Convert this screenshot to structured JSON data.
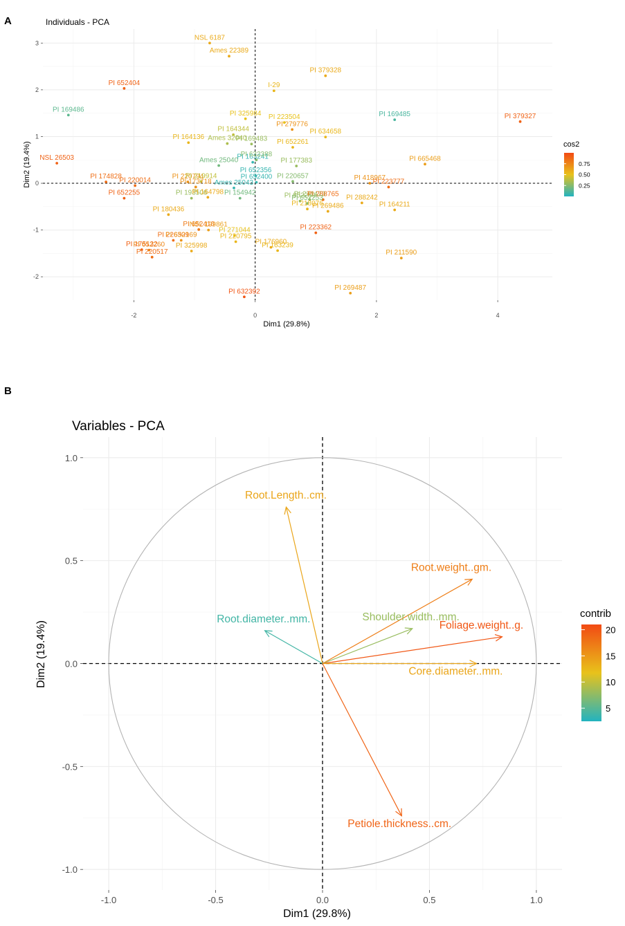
{
  "colors": {
    "low": "#22b3c0",
    "mid": "#e8c21b",
    "high": "#f24a14",
    "panel_bg": "#ffffff",
    "grid": "#ebebeb",
    "axis_text": "#4d4d4d"
  },
  "chart_data": [
    {
      "type": "scatter",
      "panel_label": "A",
      "title": "Individuals - PCA",
      "xlabel": "Dim1 (29.8%)",
      "ylabel": "Dim2 (19.4%)",
      "xlim": [
        -3.5,
        4.9
      ],
      "ylim": [
        -2.5,
        3.3
      ],
      "xticks": [
        -2,
        0,
        2,
        4
      ],
      "yticks": [
        -2,
        -1,
        0,
        1,
        2,
        3
      ],
      "legend": {
        "title": "cos2",
        "position": "right",
        "breaks": [
          "0.75",
          "0.50",
          "0.25"
        ]
      },
      "points": [
        {
          "label": "NSL 6187",
          "x": -0.75,
          "y": 3.0,
          "cos2": 0.6
        },
        {
          "label": "Ames 22389",
          "x": -0.43,
          "y": 2.72,
          "cos2": 0.6
        },
        {
          "label": "PI 379328",
          "x": 1.16,
          "y": 2.3,
          "cos2": 0.6
        },
        {
          "label": "I-29",
          "x": 0.31,
          "y": 1.98,
          "cos2": 0.55
        },
        {
          "label": "PI 652404",
          "x": -2.16,
          "y": 2.03,
          "cos2": 0.9
        },
        {
          "label": "PI 169486",
          "x": -3.08,
          "y": 1.46,
          "cos2": 0.15
        },
        {
          "label": "PI 325984",
          "x": -0.16,
          "y": 1.38,
          "cos2": 0.5
        },
        {
          "label": "PI 223504",
          "x": 0.48,
          "y": 1.3,
          "cos2": 0.5
        },
        {
          "label": "PI 169485",
          "x": 2.3,
          "y": 1.36,
          "cos2": 0.1
        },
        {
          "label": "PI 379327",
          "x": 4.37,
          "y": 1.32,
          "cos2": 0.9
        },
        {
          "label": "PI 164344",
          "x": -0.36,
          "y": 1.04,
          "cos2": 0.4
        },
        {
          "label": "PI 279776",
          "x": 0.61,
          "y": 1.15,
          "cos2": 0.7
        },
        {
          "label": "PI 634658",
          "x": 1.16,
          "y": 0.99,
          "cos2": 0.55
        },
        {
          "label": "PI 164136",
          "x": -1.1,
          "y": 0.87,
          "cos2": 0.55
        },
        {
          "label": "Ames 32040",
          "x": -0.46,
          "y": 0.85,
          "cos2": 0.35
        },
        {
          "label": "PI 169483",
          "x": -0.06,
          "y": 0.84,
          "cos2": 0.3
        },
        {
          "label": "PI 652261",
          "x": 0.62,
          "y": 0.77,
          "cos2": 0.55
        },
        {
          "label": "NSL 26503",
          "x": -3.27,
          "y": 0.43,
          "cos2": 0.9
        },
        {
          "label": "Ames 25040",
          "x": -0.6,
          "y": 0.38,
          "cos2": 0.2
        },
        {
          "label": "PI 163241",
          "x": -0.04,
          "y": 0.45,
          "cos2": 0.05
        },
        {
          "label": "PI 632388",
          "x": 0.02,
          "y": 0.5,
          "cos2": 0.25
        },
        {
          "label": "PI 177383",
          "x": 0.68,
          "y": 0.37,
          "cos2": 0.3
        },
        {
          "label": "PI 665468",
          "x": 2.8,
          "y": 0.41,
          "cos2": 0.65
        },
        {
          "label": "PI 174828",
          "x": -2.46,
          "y": 0.03,
          "cos2": 0.85
        },
        {
          "label": "PI 220794",
          "x": -1.11,
          "y": 0.03,
          "cos2": 0.7
        },
        {
          "label": "PI 219914",
          "x": -0.89,
          "y": 0.04,
          "cos2": 0.4
        },
        {
          "label": "PI 652356",
          "x": 0.01,
          "y": 0.16,
          "cos2": 0.05
        },
        {
          "label": "PI 652400",
          "x": 0.02,
          "y": 0.02,
          "cos2": 0.05
        },
        {
          "label": "PI 220657",
          "x": 0.62,
          "y": 0.04,
          "cos2": 0.25
        },
        {
          "label": "PI 418967",
          "x": 1.89,
          "y": 0.0,
          "cos2": 0.7
        },
        {
          "label": "PI 220014",
          "x": -1.98,
          "y": -0.05,
          "cos2": 0.85
        },
        {
          "label": "PI 173718",
          "x": -0.98,
          "y": -0.08,
          "cos2": 0.7
        },
        {
          "label": "Ames 25043",
          "x": -0.35,
          "y": -0.1,
          "cos2": 0.05
        },
        {
          "label": "PI 223777",
          "x": 2.2,
          "y": -0.08,
          "cos2": 0.85
        },
        {
          "label": "PI 271473",
          "x": 0.9,
          "y": -0.35,
          "cos2": 0.3
        },
        {
          "label": "PI 652259",
          "x": 0.74,
          "y": -0.38,
          "cos2": 0.3
        },
        {
          "label": "PI 652255",
          "x": -2.16,
          "y": -0.32,
          "cos2": 0.9
        },
        {
          "label": "PI 193506",
          "x": -1.05,
          "y": -0.32,
          "cos2": 0.3
        },
        {
          "label": "PI 164798",
          "x": -0.78,
          "y": -0.3,
          "cos2": 0.6
        },
        {
          "label": "PI 154942",
          "x": -0.25,
          "y": -0.32,
          "cos2": 0.2
        },
        {
          "label": "PI 288765",
          "x": 1.12,
          "y": -0.35,
          "cos2": 0.85
        },
        {
          "label": "PI 288242",
          "x": 1.76,
          "y": -0.42,
          "cos2": 0.6
        },
        {
          "label": "PI 652253",
          "x": 0.86,
          "y": -0.43,
          "cos2": 0.25
        },
        {
          "label": "PI 269486",
          "x": 1.2,
          "y": -0.6,
          "cos2": 0.6
        },
        {
          "label": "PI 164211",
          "x": 2.3,
          "y": -0.57,
          "cos2": 0.6
        },
        {
          "label": "PI 180436",
          "x": -1.43,
          "y": -0.67,
          "cos2": 0.6
        },
        {
          "label": "NSL 199861",
          "x": -0.77,
          "y": -1.0,
          "cos2": 0.65
        },
        {
          "label": "PI 652410",
          "x": -0.93,
          "y": -0.99,
          "cos2": 0.8
        },
        {
          "label": "PI 271044",
          "x": -0.34,
          "y": -1.12,
          "cos2": 0.5
        },
        {
          "label": "PI 218076",
          "x": 0.86,
          "y": -0.55,
          "cos2": 0.55
        },
        {
          "label": "PI 223362",
          "x": 1.0,
          "y": -1.06,
          "cos2": 0.9
        },
        {
          "label": "PI 226309",
          "x": -1.35,
          "y": -1.22,
          "cos2": 0.85
        },
        {
          "label": "PI 652169",
          "x": -1.22,
          "y": -1.22,
          "cos2": 0.7
        },
        {
          "label": "PI 220795",
          "x": -0.32,
          "y": -1.25,
          "cos2": 0.55
        },
        {
          "label": "PI 175132",
          "x": -1.87,
          "y": -1.42,
          "cos2": 0.9
        },
        {
          "label": "PI 652260",
          "x": -1.75,
          "y": -1.43,
          "cos2": 0.75
        },
        {
          "label": "PI 325998",
          "x": -1.05,
          "y": -1.45,
          "cos2": 0.6
        },
        {
          "label": "PI 176960",
          "x": 0.26,
          "y": -1.37,
          "cos2": 0.6
        },
        {
          "label": "PI 163239",
          "x": 0.37,
          "y": -1.44,
          "cos2": 0.55
        },
        {
          "label": "PI 220517",
          "x": -1.7,
          "y": -1.58,
          "cos2": 0.85
        },
        {
          "label": "PI 211590",
          "x": 2.41,
          "y": -1.6,
          "cos2": 0.65
        },
        {
          "label": "PI 632392",
          "x": -0.18,
          "y": -2.43,
          "cos2": 0.95
        },
        {
          "label": "PI 269487",
          "x": 1.57,
          "y": -2.35,
          "cos2": 0.65
        }
      ]
    },
    {
      "type": "variable_correlation_circle",
      "panel_label": "B",
      "title": "Variables - PCA",
      "xlabel": "Dim1 (29.8%)",
      "ylabel": "Dim2 (19.4%)",
      "xlim": [
        -1.12,
        1.12
      ],
      "ylim": [
        -1.1,
        1.1
      ],
      "xticks": [
        "-1.0",
        "-0.5",
        "0.0",
        "0.5",
        "1.0"
      ],
      "yticks": [
        "-1.0",
        "-0.5",
        "0.0",
        "0.5",
        "1.0"
      ],
      "legend": {
        "title": "contrib",
        "position": "right",
        "breaks": [
          "20",
          "15",
          "10",
          "5"
        ],
        "range": [
          2.5,
          21
        ]
      },
      "variables": [
        {
          "name": "Root.Length..cm.",
          "x": -0.17,
          "y": 0.76,
          "contrib": 14
        },
        {
          "name": "Root.weight..gm.",
          "x": 0.7,
          "y": 0.41,
          "contrib": 17
        },
        {
          "name": "Shoulder.width..mm.",
          "x": 0.42,
          "y": 0.17,
          "contrib": 8
        },
        {
          "name": "Root.diameter..mm.",
          "x": -0.27,
          "y": 0.16,
          "contrib": 4
        },
        {
          "name": "Foliage.weight..g.",
          "x": 0.84,
          "y": 0.13,
          "contrib": 20
        },
        {
          "name": "Core.diameter..mm.",
          "x": 0.72,
          "y": 0.0,
          "contrib": 14
        },
        {
          "name": "Petiole.thickness..cm.",
          "x": 0.37,
          "y": -0.74,
          "contrib": 19
        }
      ]
    }
  ]
}
